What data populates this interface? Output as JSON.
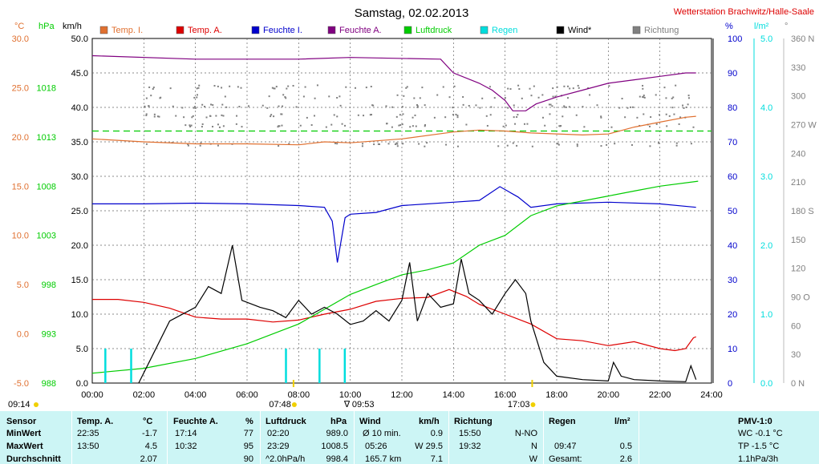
{
  "header": {
    "title": "Samstag, 02.02.2013",
    "station": "Wetterstation Brachwitz/Halle-Saale"
  },
  "colors": {
    "temp_i": "#e07030",
    "temp_a": "#dd0000",
    "feuchte_i": "#0000cc",
    "feuchte_a": "#800080",
    "luftdruck": "#00cc00",
    "regen": "#00dddd",
    "wind": "#000000",
    "richtung": "#808080",
    "stats_bg": "#ccf5f5"
  },
  "axis_units": {
    "temp": "°C",
    "pressure": "hPa",
    "wind": "km/h",
    "humidity": "%",
    "rain": "l/m²",
    "direction": "°"
  },
  "axes": {
    "temp": [
      "-5.0",
      "0.0",
      "5.0",
      "10.0",
      "15.0",
      "20.0",
      "25.0",
      "30.0"
    ],
    "pressure": [
      "988",
      "993",
      "998",
      "1003",
      "1008",
      "1013",
      "1018"
    ],
    "wind": [
      "0.0",
      "5.0",
      "10.0",
      "15.0",
      "20.0",
      "25.0",
      "30.0",
      "35.0",
      "40.0",
      "45.0",
      "50.0"
    ],
    "humidity": [
      "0",
      "10",
      "20",
      "30",
      "40",
      "50",
      "60",
      "70",
      "80",
      "90",
      "100"
    ],
    "rain": [
      "0.0",
      "1.0",
      "2.0",
      "3.0",
      "4.0",
      "5.0"
    ],
    "direction": [
      "0  N",
      "30",
      "60",
      "90  O",
      "120",
      "150",
      "180 S",
      "210",
      "240",
      "270 W",
      "300",
      "330",
      "360 N"
    ],
    "time": [
      "00:00",
      "02:00",
      "04:00",
      "06:00",
      "08:00",
      "10:00",
      "12:00",
      "14:00",
      "16:00",
      "18:00",
      "20:00",
      "22:00",
      "24:00"
    ]
  },
  "markers": {
    "sunrise": "07:48",
    "sunset": "17:03",
    "max_rain": "09:53",
    "bottom_left": "09:14"
  },
  "chart_data": {
    "type": "line",
    "title": "Samstag, 02.02.2013",
    "xlabel": "",
    "x_range_hours": [
      0,
      24
    ],
    "series": [
      {
        "name": "Temp. I.",
        "axis": "temp °C",
        "points": [
          [
            0,
            19.8
          ],
          [
            2,
            19.5
          ],
          [
            4,
            19.3
          ],
          [
            6,
            19.3
          ],
          [
            8,
            19.2
          ],
          [
            9,
            19.5
          ],
          [
            10,
            19.4
          ],
          [
            12,
            19.8
          ],
          [
            14,
            20.5
          ],
          [
            15,
            20.7
          ],
          [
            16,
            20.6
          ],
          [
            17,
            20.4
          ],
          [
            19,
            20.2
          ],
          [
            20,
            20.3
          ],
          [
            21,
            21.0
          ],
          [
            22,
            21.5
          ],
          [
            23,
            22.0
          ],
          [
            23.4,
            22.1
          ]
        ]
      },
      {
        "name": "Temp. A.",
        "axis": "temp °C",
        "points": [
          [
            0,
            3.5
          ],
          [
            1,
            3.5
          ],
          [
            2,
            3.2
          ],
          [
            3,
            2.6
          ],
          [
            4,
            1.7
          ],
          [
            5,
            1.5
          ],
          [
            6,
            1.5
          ],
          [
            7,
            1.2
          ],
          [
            8,
            1.4
          ],
          [
            9,
            2.0
          ],
          [
            10,
            2.5
          ],
          [
            11,
            3.3
          ],
          [
            12,
            3.6
          ],
          [
            13,
            3.7
          ],
          [
            13.83,
            4.5
          ],
          [
            14.5,
            3.8
          ],
          [
            15,
            3.0
          ],
          [
            16,
            2.0
          ],
          [
            17,
            1.0
          ],
          [
            18,
            -0.5
          ],
          [
            19,
            -0.7
          ],
          [
            20,
            -1.2
          ],
          [
            21,
            -0.8
          ],
          [
            22,
            -1.5
          ],
          [
            22.58,
            -1.7
          ],
          [
            23,
            -1.5
          ],
          [
            23.3,
            -0.4
          ],
          [
            23.4,
            -0.3
          ]
        ]
      },
      {
        "name": "Feuchte I.",
        "axis": "% ",
        "points": [
          [
            0,
            52
          ],
          [
            2,
            52
          ],
          [
            4,
            52.2
          ],
          [
            6,
            52
          ],
          [
            8,
            51.5
          ],
          [
            9,
            51
          ],
          [
            9.3,
            47
          ],
          [
            9.5,
            35
          ],
          [
            9.8,
            48
          ],
          [
            10,
            49
          ],
          [
            11,
            49.5
          ],
          [
            12,
            51.5
          ],
          [
            14,
            52.5
          ],
          [
            15,
            53
          ],
          [
            15.8,
            57
          ],
          [
            16.5,
            54
          ],
          [
            17,
            51
          ],
          [
            18,
            52
          ],
          [
            20,
            52.5
          ],
          [
            22,
            52
          ],
          [
            23.4,
            51
          ]
        ]
      },
      {
        "name": "Feuchte A.",
        "axis": "% ",
        "points": [
          [
            0,
            95
          ],
          [
            4,
            94
          ],
          [
            8,
            94
          ],
          [
            10,
            94.5
          ],
          [
            13.5,
            94
          ],
          [
            14,
            90
          ],
          [
            15,
            87
          ],
          [
            15.5,
            85
          ],
          [
            16,
            82
          ],
          [
            16.3,
            79
          ],
          [
            16.8,
            79
          ],
          [
            17.2,
            81
          ],
          [
            18,
            83
          ],
          [
            19,
            85
          ],
          [
            20,
            87
          ],
          [
            21,
            88
          ],
          [
            22,
            89
          ],
          [
            23,
            90
          ],
          [
            23.4,
            90
          ]
        ]
      },
      {
        "name": "Luftdruck",
        "axis": "hPa",
        "points": [
          [
            0,
            989
          ],
          [
            2,
            989.5
          ],
          [
            4,
            990.5
          ],
          [
            6,
            992
          ],
          [
            7.5,
            993.5
          ],
          [
            8,
            994
          ],
          [
            9,
            995.5
          ],
          [
            10,
            997
          ],
          [
            11,
            998
          ],
          [
            12,
            999
          ],
          [
            13,
            999.5
          ],
          [
            14,
            1000.2
          ],
          [
            15,
            1002
          ],
          [
            16,
            1003
          ],
          [
            17,
            1005
          ],
          [
            18,
            1006
          ],
          [
            20,
            1007
          ],
          [
            21,
            1007.5
          ],
          [
            22,
            1008
          ],
          [
            23.48,
            1008.5
          ]
        ]
      },
      {
        "name": "Regen",
        "axis": "l/m²",
        "bars": [
          [
            0.5,
            0.5
          ],
          [
            1.5,
            0.5
          ],
          [
            7.5,
            0.5
          ],
          [
            8.8,
            0.5
          ],
          [
            9.78,
            0.5
          ]
        ]
      },
      {
        "name": "Wind*",
        "axis": "km/h",
        "points": [
          [
            1.8,
            0
          ],
          [
            2.2,
            3
          ],
          [
            3,
            9
          ],
          [
            4,
            11
          ],
          [
            4.5,
            14
          ],
          [
            5,
            13
          ],
          [
            5.43,
            20
          ],
          [
            5.8,
            12
          ],
          [
            6.5,
            11
          ],
          [
            7,
            10.5
          ],
          [
            7.5,
            9.5
          ],
          [
            8,
            12
          ],
          [
            8.5,
            10
          ],
          [
            9,
            11
          ],
          [
            9.5,
            10
          ],
          [
            10,
            8.5
          ],
          [
            10.5,
            9
          ],
          [
            11,
            10.5
          ],
          [
            11.5,
            9
          ],
          [
            12,
            12
          ],
          [
            12.3,
            17.5
          ],
          [
            12.6,
            9
          ],
          [
            13,
            13
          ],
          [
            13.5,
            11
          ],
          [
            14,
            11.5
          ],
          [
            14.3,
            18
          ],
          [
            14.6,
            13
          ],
          [
            15,
            12
          ],
          [
            15.5,
            10
          ],
          [
            16,
            13
          ],
          [
            16.4,
            15
          ],
          [
            16.8,
            13
          ],
          [
            17,
            9
          ],
          [
            17.5,
            3
          ],
          [
            18,
            1
          ],
          [
            19,
            0.5
          ],
          [
            20,
            0.3
          ],
          [
            20.2,
            3
          ],
          [
            20.5,
            1
          ],
          [
            21,
            0.5
          ],
          [
            22,
            0.3
          ],
          [
            23,
            0.2
          ],
          [
            23.2,
            2.5
          ],
          [
            23.4,
            0.5
          ]
        ]
      }
    ],
    "dashed_reference": {
      "axis": "temp °C",
      "value": 20.6
    }
  },
  "stats": {
    "headers": {
      "sensor": "Sensor",
      "temp": "Temp. A.",
      "temp_unit": "°C",
      "hum": "Feuchte A.",
      "hum_unit": "%",
      "pres": "Luftdruck",
      "pres_unit": "hPa",
      "wind": "Wind",
      "wind_unit": "km/h",
      "dir": "Richtung",
      "rain": "Regen",
      "rain_unit": "l/m²",
      "pmv": "PMV-1:0"
    },
    "rows": [
      {
        "label": "MinWert",
        "temp_time": "22:35",
        "temp_val": "-1.7",
        "hum_time": "17:14",
        "hum_val": "77",
        "pres_time": "02:20",
        "pres_val": "989.0",
        "wind_time": "Ø 10 min.",
        "wind_val": "0.9",
        "dir_time": "15:50",
        "dir_val": "N-NO",
        "rain_time": "",
        "rain_val": "",
        "pmv": "WC -0.1 °C"
      },
      {
        "label": "MaxWert",
        "temp_time": "13:50",
        "temp_val": "4.5",
        "hum_time": "10:32",
        "hum_val": "95",
        "pres_time": "23:29",
        "pres_val": "1008.5",
        "wind_time": "05:26",
        "wind_val": "W 29.5",
        "dir_time": "19:32",
        "dir_val": "N",
        "rain_time": "09:47",
        "rain_val": "0.5",
        "pmv": "TP -1.5 °C"
      },
      {
        "label": "Durchschnitt",
        "temp_time": "",
        "temp_val": "2.07",
        "hum_time": "",
        "hum_val": "90",
        "pres_time": "^2.0hPa/h",
        "pres_val": "998.4",
        "wind_time": "165.7 km",
        "wind_val": "7.1",
        "dir_time": "",
        "dir_val": "W",
        "rain_time": "Gesamt:",
        "rain_val": "2.6",
        "pmv": "1.1hPa/3h"
      }
    ]
  }
}
